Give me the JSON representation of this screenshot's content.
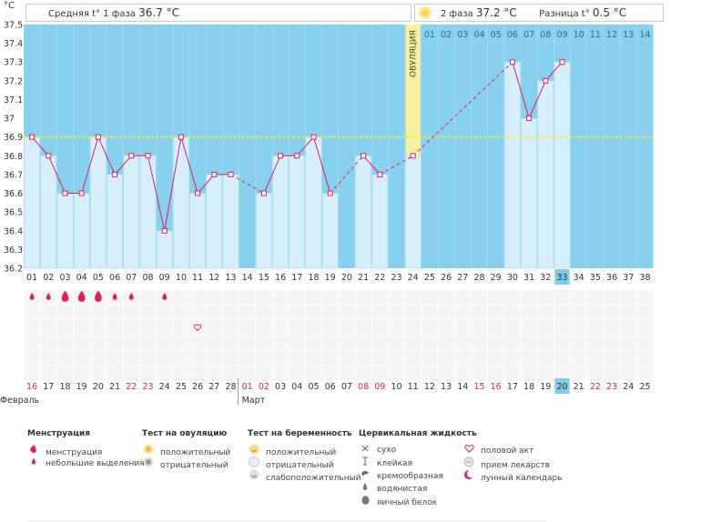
{
  "header": {
    "left_label": "Средняя t° 1 фаза",
    "left_value": "36.7 °C",
    "phase2_label": "2 фаза",
    "phase2_value": "37.2 °C",
    "diff_label": "Разница t°",
    "diff_value": "0.5 °C",
    "sun_icon": "sun-icon"
  },
  "colors": {
    "chart_bg": "#87d0ee",
    "bar_fill": "#d6effb",
    "bar_border": "#9ad7f1",
    "line": "#e0205a",
    "coverline": "#f4ec3c",
    "ovulation_band": "#fbf0a0",
    "highlight": "#7fcbea",
    "red_text": "#e0204e"
  },
  "chart_data": {
    "type": "line",
    "title": "",
    "ylabel": "°C",
    "ylim": [
      36.2,
      37.5
    ],
    "y_ticks": [
      "36.2",
      "36.3",
      "36.4",
      "36.5",
      "36.6",
      "36.7",
      "36.8",
      "36.9",
      "37",
      "37.1",
      "37.2",
      "37.3",
      "37.4",
      "37.5"
    ],
    "cycle_days": [
      "01",
      "02",
      "03",
      "04",
      "05",
      "06",
      "07",
      "08",
      "09",
      "10",
      "11",
      "12",
      "13",
      "14",
      "15",
      "16",
      "17",
      "18",
      "19",
      "20",
      "21",
      "22",
      "23",
      "24",
      "25",
      "26",
      "27",
      "28",
      "29",
      "30",
      "31",
      "32",
      "33",
      "34",
      "35",
      "36",
      "37",
      "38"
    ],
    "temperatures": [
      36.9,
      36.8,
      36.6,
      36.6,
      36.9,
      36.7,
      36.8,
      36.8,
      36.4,
      36.9,
      36.6,
      36.7,
      36.7,
      null,
      36.6,
      36.8,
      36.8,
      36.9,
      36.6,
      null,
      36.8,
      36.7,
      null,
      36.8,
      null,
      null,
      null,
      null,
      null,
      37.3,
      37.0,
      37.2,
      37.3,
      null,
      null,
      null,
      null,
      null
    ],
    "coverline": 36.9,
    "ovulation_day": 24,
    "ovulation_label": "ОВУЛЯЦИЯ",
    "phase2_day_labels": [
      "01",
      "02",
      "03",
      "04",
      "05",
      "06",
      "07",
      "08",
      "09",
      "10",
      "11",
      "12",
      "13",
      "14"
    ],
    "current_day": 33,
    "calendar_dates": [
      "16",
      "17",
      "18",
      "19",
      "20",
      "21",
      "22",
      "23",
      "24",
      "25",
      "26",
      "27",
      "28",
      "01",
      "02",
      "03",
      "04",
      "05",
      "06",
      "07",
      "08",
      "09",
      "10",
      "11",
      "12",
      "13",
      "14",
      "15",
      "16",
      "17",
      "18",
      "19",
      "20",
      "21",
      "22",
      "23",
      "24",
      "25"
    ],
    "calendar_red": [
      0,
      6,
      7,
      13,
      14,
      20,
      21,
      27,
      28,
      34,
      35
    ],
    "month_labels": [
      "Февраль",
      "Март"
    ],
    "menstruation": [
      1,
      1,
      2,
      2,
      2,
      1,
      1,
      0,
      1
    ]
  },
  "legend": {
    "groups": [
      {
        "title": "Менструация",
        "items": [
          {
            "icon": "drop-icon",
            "label": "менструация"
          },
          {
            "icon": "small-drop-icon",
            "label": "небольшие выделения"
          }
        ]
      },
      {
        "title": "Тест на овуляцию",
        "items": [
          {
            "icon": "sun-positive-icon",
            "label": "положительный"
          },
          {
            "icon": "sun-negative-icon",
            "label": "отрицательный"
          }
        ]
      },
      {
        "title": "Тест на беременность",
        "items": [
          {
            "icon": "face-positive-icon",
            "label": "положительный"
          },
          {
            "icon": "face-negative-icon",
            "label": "отрицательный"
          },
          {
            "icon": "face-weak-icon",
            "label": "слабоположительный"
          }
        ]
      },
      {
        "title": "Цервикальная жидкость",
        "items": [
          {
            "icon": "cross-icon",
            "label": "сухо"
          },
          {
            "icon": "t-icon",
            "label": "клейкая"
          },
          {
            "icon": "creamy-icon",
            "label": "кремообразная"
          },
          {
            "icon": "watery-icon",
            "label": "водянистая"
          },
          {
            "icon": "egg-white-icon",
            "label": "яичный белок"
          }
        ]
      },
      {
        "title": "",
        "items": [
          {
            "icon": "heart-icon",
            "label": "половой акт"
          },
          {
            "icon": "pill-icon",
            "label": "прием лекарств"
          },
          {
            "icon": "moon-icon",
            "label": "лунный календарь"
          }
        ]
      }
    ]
  }
}
